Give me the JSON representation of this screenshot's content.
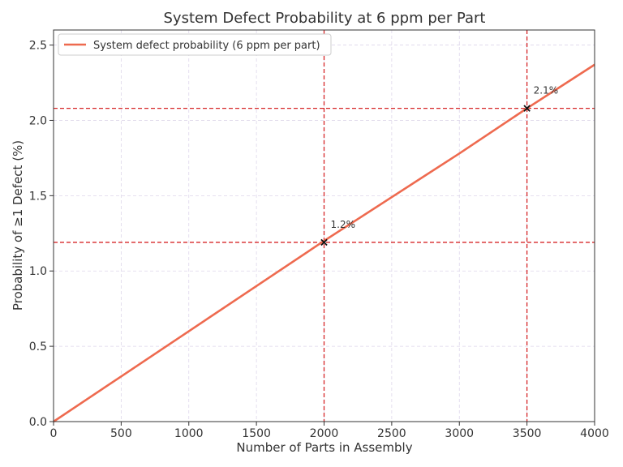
{
  "chart_data": {
    "type": "line",
    "title": "System Defect Probability at 6 ppm per Part",
    "xlabel": "Number of Parts in Assembly",
    "ylabel": "Probability of ≥1 Defect (%)",
    "xlim": [
      0,
      4000
    ],
    "ylim": [
      0,
      2.6
    ],
    "xticks": [
      0,
      500,
      1000,
      1500,
      2000,
      2500,
      3000,
      3500,
      4000
    ],
    "xtick_labels": [
      "0",
      "500",
      "1000",
      "1500",
      "2000",
      "2500",
      "3000",
      "3500",
      "4000"
    ],
    "yticks": [
      0.0,
      0.5,
      1.0,
      1.5,
      2.0,
      2.5
    ],
    "ytick_labels": [
      "0.0",
      "0.5",
      "1.0",
      "1.5",
      "2.0",
      "2.5"
    ],
    "grid": true,
    "legend_position": "upper-left",
    "series": [
      {
        "name": "System defect probability (6 ppm per part)",
        "color": "#ee6a4f",
        "x": [
          0,
          500,
          1000,
          1500,
          2000,
          2500,
          3000,
          3500,
          4000
        ],
        "y": [
          0,
          0.3,
          0.6,
          0.9,
          1.2,
          1.49,
          1.78,
          2.08,
          2.37
        ]
      }
    ],
    "markers": [
      {
        "x": 2000,
        "y": 1.19,
        "label": "1.2%"
      },
      {
        "x": 3500,
        "y": 2.08,
        "label": "2.1%"
      }
    ],
    "reference_line_color": "#d62728"
  }
}
